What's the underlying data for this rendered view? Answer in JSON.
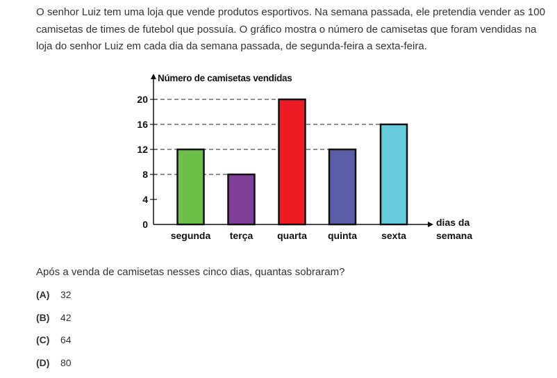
{
  "intro_text": "O senhor Luiz tem uma loja que vende produtos esportivos. Na semana passada, ele pretendia vender as 100 camisetas de times de futebol que possuía. O gráfico mostra o número de camisetas que foram vendidas na loja do senhor Luiz em cada dia da semana passada, de segunda-feira a sexta-feira.",
  "question": "Após a venda de camisetas nesses cinco dias, quantas sobraram?",
  "options": [
    {
      "letter": "(A)",
      "value": "32"
    },
    {
      "letter": "(B)",
      "value": "42"
    },
    {
      "letter": "(C)",
      "value": "64"
    },
    {
      "letter": "(D)",
      "value": "80"
    }
  ],
  "chart_data": {
    "type": "bar",
    "categories": [
      "segunda",
      "terça",
      "quarta",
      "quinta",
      "sexta"
    ],
    "values": [
      12,
      8,
      20,
      12,
      16
    ],
    "colors": [
      "#6cc04a",
      "#7f3f98",
      "#ed1c24",
      "#5b5ea6",
      "#66ccdd"
    ],
    "ylabel": "Número de camisetas vendidas",
    "xlabel_lines": [
      "dias da",
      "semana"
    ],
    "yticks": [
      0,
      4,
      8,
      12,
      16,
      20
    ],
    "ylim": [
      0,
      20
    ],
    "dashed_reference_values": [
      8,
      12,
      16,
      20
    ]
  }
}
